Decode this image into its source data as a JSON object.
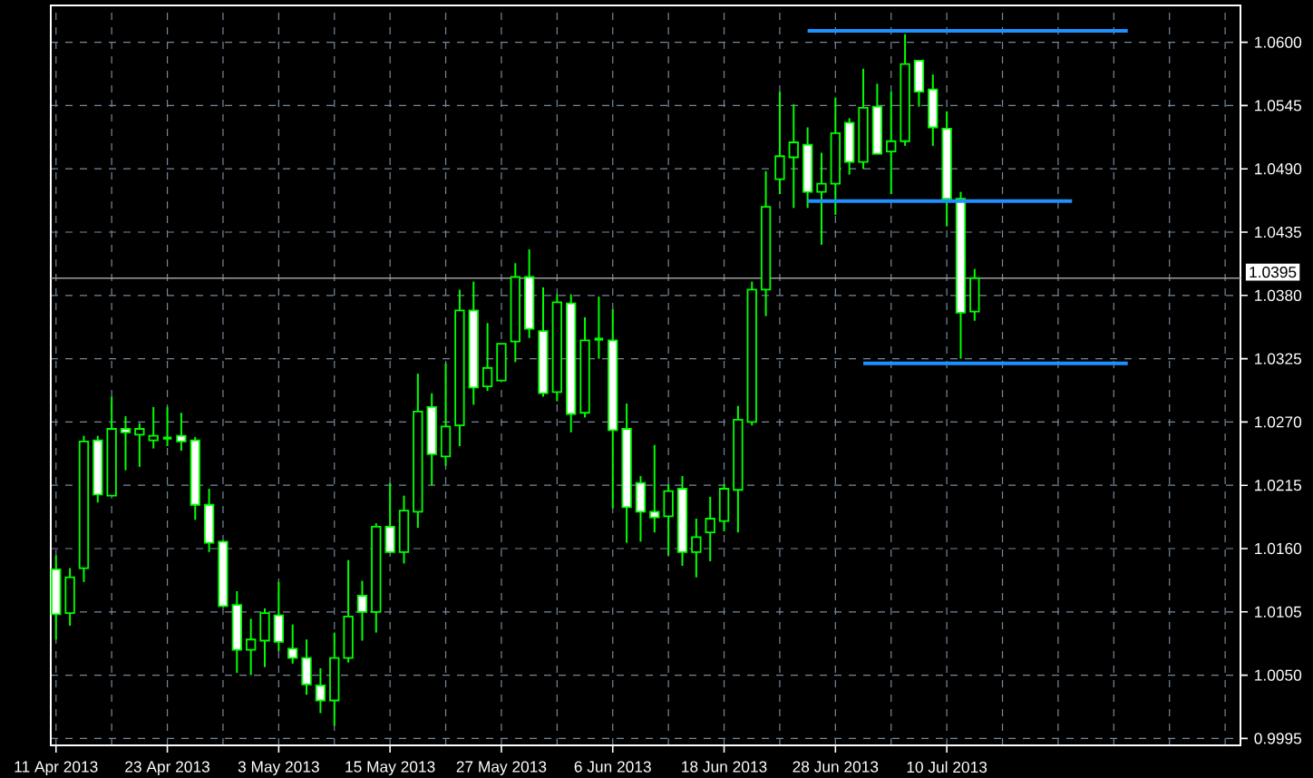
{
  "chart_data": {
    "type": "candlestick",
    "categories": [
      "11 Apr 2013",
      null,
      null,
      null,
      null,
      null,
      null,
      null,
      "23 Apr 2013",
      null,
      null,
      null,
      null,
      null,
      null,
      null,
      "3 May 2013",
      null,
      null,
      null,
      null,
      null,
      null,
      null,
      "15 May 2013",
      null,
      null,
      null,
      null,
      null,
      null,
      null,
      "27 May 2013",
      null,
      null,
      null,
      null,
      null,
      null,
      null,
      "6 Jun 2013",
      null,
      null,
      null,
      null,
      null,
      null,
      null,
      "18 Jun 2013",
      null,
      null,
      null,
      null,
      null,
      null,
      null,
      "28 Jun 2013",
      null,
      null,
      null,
      null,
      null,
      null,
      null,
      "10 Jul 2013",
      null,
      null,
      null,
      null,
      null,
      null,
      null,
      null,
      null,
      null,
      null,
      null,
      null,
      null,
      null,
      null,
      null,
      null,
      null,
      null,
      null
    ],
    "ohlc": [
      [
        1.0142,
        1.0154,
        1.0081,
        1.0103
      ],
      [
        1.0104,
        1.0143,
        1.0093,
        1.0135
      ],
      [
        1.0143,
        1.0258,
        1.0131,
        1.0253
      ],
      [
        1.0254,
        1.0258,
        1.02,
        1.0207
      ],
      [
        1.0206,
        1.0292,
        1.0206,
        1.0264
      ],
      [
        1.0264,
        1.0275,
        1.0228,
        1.0261
      ],
      [
        1.0259,
        1.0269,
        1.0231,
        1.0264
      ],
      [
        1.0254,
        1.0283,
        1.0247,
        1.0258
      ],
      [
        1.0256,
        1.0283,
        1.0249,
        1.0256
      ],
      [
        1.0258,
        1.0278,
        1.0245,
        1.0253
      ],
      [
        1.0254,
        1.0257,
        1.0185,
        1.0198
      ],
      [
        1.0198,
        1.0212,
        1.0157,
        1.0165
      ],
      [
        1.0166,
        1.0167,
        1.0109,
        1.011
      ],
      [
        1.0111,
        1.0123,
        1.0052,
        1.0072
      ],
      [
        1.0072,
        1.0099,
        1.005,
        1.0081
      ],
      [
        1.008,
        1.0108,
        1.0057,
        1.0104
      ],
      [
        1.0102,
        1.0131,
        1.0071,
        1.0079
      ],
      [
        1.0073,
        1.0094,
        1.006,
        1.0065
      ],
      [
        1.0065,
        1.0081,
        1.0033,
        1.0042
      ],
      [
        1.0041,
        1.0056,
        1.0017,
        1.0028
      ],
      [
        1.0028,
        1.0087,
        1.0006,
        1.0065
      ],
      [
        1.0065,
        1.015,
        1.0061,
        1.0101
      ],
      [
        1.0119,
        1.0132,
        1.008,
        1.0105
      ],
      [
        1.0105,
        1.0182,
        1.0087,
        1.0179
      ],
      [
        1.0179,
        1.0217,
        1.0156,
        1.0157
      ],
      [
        1.0157,
        1.0206,
        1.0147,
        1.0193
      ],
      [
        1.0192,
        1.0312,
        1.0178,
        1.0279
      ],
      [
        1.0283,
        1.0295,
        1.0215,
        1.0242
      ],
      [
        1.024,
        1.0321,
        1.0232,
        1.0266
      ],
      [
        1.0267,
        1.0385,
        1.0249,
        1.0367
      ],
      [
        1.0367,
        1.0392,
        1.0285,
        1.03
      ],
      [
        1.0301,
        1.0356,
        1.0297,
        1.0317
      ],
      [
        1.0306,
        1.0338,
        1.0306,
        1.0338
      ],
      [
        1.034,
        1.0408,
        1.0322,
        1.0396
      ],
      [
        1.0396,
        1.042,
        1.0343,
        1.0351
      ],
      [
        1.0349,
        1.0387,
        1.0292,
        1.0295
      ],
      [
        1.0296,
        1.0381,
        1.0288,
        1.0374
      ],
      [
        1.0373,
        1.0381,
        1.0261,
        1.0277
      ],
      [
        1.0278,
        1.0361,
        1.0274,
        1.0341
      ],
      [
        1.0342,
        1.0379,
        1.0325,
        1.0342
      ],
      [
        1.0341,
        1.0368,
        1.0195,
        1.0263
      ],
      [
        1.0264,
        1.0286,
        1.0165,
        1.0196
      ],
      [
        1.0217,
        1.0223,
        1.0166,
        1.0192
      ],
      [
        1.0192,
        1.025,
        1.0174,
        1.0187
      ],
      [
        1.0188,
        1.0216,
        1.0154,
        1.021
      ],
      [
        1.0212,
        1.0223,
        1.0145,
        1.0157
      ],
      [
        1.0157,
        1.0186,
        1.0135,
        1.017
      ],
      [
        1.0174,
        1.0205,
        1.0149,
        1.0186
      ],
      [
        1.0184,
        1.0216,
        1.0175,
        1.0212
      ],
      [
        1.0211,
        1.0284,
        1.0174,
        1.0272
      ],
      [
        1.027,
        1.0392,
        1.0267,
        1.0385
      ],
      [
        1.0385,
        1.0488,
        1.0362,
        1.0457
      ],
      [
        1.0481,
        1.0557,
        1.0468,
        1.0501
      ],
      [
        1.05,
        1.0546,
        1.0456,
        1.0513
      ],
      [
        1.0511,
        1.0526,
        1.0456,
        1.047
      ],
      [
        1.047,
        1.0504,
        1.0424,
        1.0477
      ],
      [
        1.0477,
        1.0552,
        1.045,
        1.0521
      ],
      [
        1.053,
        1.0534,
        1.0485,
        1.0496
      ],
      [
        1.0496,
        1.0577,
        1.049,
        1.0543
      ],
      [
        1.0544,
        1.0564,
        1.0503,
        1.0503
      ],
      [
        1.0505,
        1.0557,
        1.0468,
        1.0514
      ],
      [
        1.0514,
        1.0607,
        1.051,
        1.0581
      ],
      [
        1.0584,
        1.0584,
        1.0544,
        1.0557
      ],
      [
        1.0559,
        1.0572,
        1.051,
        1.0526
      ],
      [
        1.0525,
        1.054,
        1.044,
        1.0464
      ],
      [
        1.0464,
        1.047,
        1.0325,
        1.0365
      ],
      [
        1.0366,
        1.0403,
        1.0358,
        1.0395
      ],
      null,
      null,
      null,
      null,
      null,
      null,
      null,
      null,
      null,
      null,
      null,
      null,
      null,
      null,
      null,
      null,
      null,
      null,
      null
    ],
    "color": "#00ff00",
    "series": [
      {
        "type": "line",
        "color": "#1e90ff",
        "values": [
          null,
          null,
          null,
          null,
          null,
          null,
          null,
          null,
          null,
          null,
          null,
          null,
          null,
          null,
          null,
          null,
          null,
          null,
          null,
          null,
          null,
          null,
          null,
          null,
          null,
          null,
          null,
          null,
          null,
          null,
          null,
          null,
          null,
          null,
          null,
          null,
          null,
          null,
          null,
          null,
          null,
          null,
          null,
          null,
          null,
          null,
          null,
          null,
          null,
          null,
          null,
          null,
          null,
          null,
          1.061,
          1.061,
          1.061,
          1.061,
          1.061,
          1.061,
          1.061,
          1.061,
          1.061,
          1.061,
          1.061,
          1.061,
          1.061,
          1.061,
          1.061,
          1.061,
          1.061,
          1.061,
          1.061,
          1.061,
          1.061,
          1.061,
          1.061,
          1.061,
          null,
          null,
          null,
          null,
          null,
          null,
          null,
          null
        ]
      },
      {
        "type": "line",
        "color": "#1e90ff",
        "values": [
          null,
          null,
          null,
          null,
          null,
          null,
          null,
          null,
          null,
          null,
          null,
          null,
          null,
          null,
          null,
          null,
          null,
          null,
          null,
          null,
          null,
          null,
          null,
          null,
          null,
          null,
          null,
          null,
          null,
          null,
          null,
          null,
          null,
          null,
          null,
          null,
          null,
          null,
          null,
          null,
          null,
          null,
          null,
          null,
          null,
          null,
          null,
          null,
          null,
          null,
          null,
          null,
          null,
          null,
          1.0462,
          1.0462,
          1.0462,
          1.0462,
          1.0462,
          1.0462,
          1.0462,
          1.0462,
          1.0462,
          1.0462,
          1.0462,
          1.0462,
          1.0462,
          1.0462,
          1.0462,
          1.0462,
          1.0462,
          1.0462,
          1.0462,
          1.0462,
          null,
          null,
          null,
          null,
          null,
          null,
          null,
          null,
          null,
          null,
          null,
          null
        ]
      },
      {
        "type": "line",
        "color": "#1e90ff",
        "values": [
          null,
          null,
          null,
          null,
          null,
          null,
          null,
          null,
          null,
          null,
          null,
          null,
          null,
          null,
          null,
          null,
          null,
          null,
          null,
          null,
          null,
          null,
          null,
          null,
          null,
          null,
          null,
          null,
          null,
          null,
          null,
          null,
          null,
          null,
          null,
          null,
          null,
          null,
          null,
          null,
          null,
          null,
          null,
          null,
          null,
          null,
          null,
          null,
          null,
          null,
          null,
          null,
          null,
          null,
          null,
          null,
          null,
          null,
          1.0321,
          1.0321,
          1.0321,
          1.0321,
          1.0321,
          1.0321,
          1.0321,
          1.0321,
          1.0321,
          1.0321,
          1.0321,
          1.0321,
          1.0321,
          1.0321,
          1.0321,
          1.0321,
          1.0321,
          1.0321,
          1.0321,
          1.0321,
          null,
          null,
          null,
          null,
          null,
          null,
          null,
          null
        ]
      }
    ],
    "ylim": [
      0.9989,
      1.0632
    ],
    "yticks": [
      {
        "value": 0.9995,
        "label": "0.9995"
      },
      {
        "value": 1.005,
        "label": "1.0050"
      },
      {
        "value": 1.0105,
        "label": "1.0105"
      },
      {
        "value": 1.016,
        "label": "1.0160"
      },
      {
        "value": 1.0215,
        "label": "1.0215"
      },
      {
        "value": 1.027,
        "label": "1.0270"
      },
      {
        "value": 1.0325,
        "label": "1.0325"
      },
      {
        "value": 1.038,
        "label": "1.0380"
      },
      {
        "value": 1.0435,
        "label": "1.0435"
      },
      {
        "value": 1.049,
        "label": "1.0490"
      },
      {
        "value": 1.0545,
        "label": "1.0545"
      },
      {
        "value": 1.06,
        "label": "1.0600"
      }
    ],
    "grid": true,
    "ref_lines": [
      {
        "axis": "y",
        "value": 1.0395,
        "label": "1.0395",
        "color": "#a0a0a0"
      }
    ]
  }
}
